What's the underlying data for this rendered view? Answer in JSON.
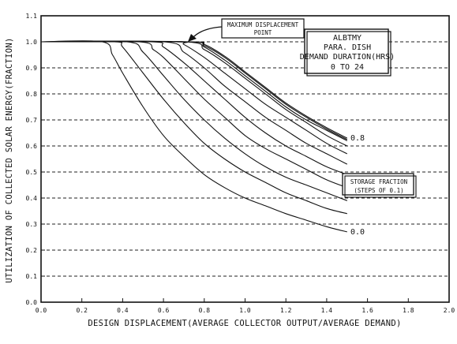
{
  "chart_data": {
    "type": "line",
    "xlabel": "DESIGN DISPLACEMENT(AVERAGE COLLECTOR OUTPUT/AVERAGE DEMAND)",
    "ylabel": "UTILIZATION OF COLLECTED SOLAR ENERGY(FRACTION)",
    "xlim": [
      0,
      2.0
    ],
    "ylim": [
      0,
      1.1
    ],
    "x_ticks": [
      "0.0",
      "0.2",
      "0.4",
      "0.6",
      "0.8",
      "1.0",
      "1.2",
      "1.4",
      "1.6",
      "1.8",
      "2.0"
    ],
    "y_ticks": [
      "0.0",
      "0.1",
      "0.2",
      "0.3",
      "0.4",
      "0.5",
      "0.6",
      "0.7",
      "0.8",
      "0.9",
      "1.0",
      "1.1"
    ],
    "grid": true,
    "info_box": [
      "ALBTMY",
      "PARA. DISH",
      "DEMAND DURATION(HRS)",
      "0 TO 24"
    ],
    "max_point_annotation": [
      "MAXIMUM DISPLACEMENT",
      "POINT"
    ],
    "storage_box": [
      "STORAGE FRACTION",
      "(STEPS OF 0.1)"
    ],
    "curve_label_top": "0.8",
    "curve_label_bottom": "0.0",
    "series": [
      {
        "x": [
          0.0,
          0.3,
          0.35,
          0.4,
          0.5,
          0.6,
          0.7,
          0.8,
          0.9,
          1.0,
          1.1,
          1.2,
          1.3,
          1.4,
          1.5
        ],
        "y": [
          1.0,
          1.0,
          0.95,
          0.88,
          0.75,
          0.64,
          0.56,
          0.49,
          0.44,
          0.4,
          0.37,
          0.34,
          0.315,
          0.29,
          0.27
        ]
      },
      {
        "x": [
          0.0,
          0.36,
          0.4,
          0.5,
          0.6,
          0.7,
          0.8,
          0.9,
          1.0,
          1.1,
          1.2,
          1.3,
          1.4,
          1.5
        ],
        "y": [
          1.0,
          1.0,
          0.98,
          0.88,
          0.78,
          0.69,
          0.61,
          0.55,
          0.5,
          0.46,
          0.42,
          0.39,
          0.36,
          0.34
        ]
      },
      {
        "x": [
          0.0,
          0.42,
          0.5,
          0.6,
          0.7,
          0.8,
          0.9,
          1.0,
          1.1,
          1.2,
          1.3,
          1.4,
          1.5
        ],
        "y": [
          1.0,
          1.0,
          0.96,
          0.87,
          0.78,
          0.7,
          0.63,
          0.57,
          0.52,
          0.48,
          0.45,
          0.42,
          0.39
        ]
      },
      {
        "x": [
          0.0,
          0.48,
          0.55,
          0.6,
          0.7,
          0.8,
          0.9,
          1.0,
          1.1,
          1.2,
          1.3,
          1.4,
          1.5
        ],
        "y": [
          1.0,
          1.0,
          0.97,
          0.94,
          0.86,
          0.78,
          0.71,
          0.64,
          0.59,
          0.55,
          0.51,
          0.47,
          0.44
        ]
      },
      {
        "x": [
          0.0,
          0.54,
          0.6,
          0.7,
          0.8,
          0.9,
          1.0,
          1.1,
          1.2,
          1.3,
          1.4,
          1.5
        ],
        "y": [
          1.0,
          1.0,
          0.98,
          0.92,
          0.85,
          0.78,
          0.71,
          0.65,
          0.6,
          0.56,
          0.52,
          0.49
        ]
      },
      {
        "x": [
          0.0,
          0.6,
          0.7,
          0.8,
          0.9,
          1.0,
          1.1,
          1.2,
          1.3,
          1.4,
          1.5
        ],
        "y": [
          1.0,
          1.0,
          0.96,
          0.9,
          0.83,
          0.77,
          0.71,
          0.66,
          0.61,
          0.57,
          0.53
        ]
      },
      {
        "x": [
          0.0,
          0.66,
          0.7,
          0.8,
          0.9,
          1.0,
          1.1,
          1.2,
          1.3,
          1.4,
          1.5
        ],
        "y": [
          1.0,
          1.0,
          0.99,
          0.94,
          0.88,
          0.82,
          0.76,
          0.71,
          0.66,
          0.61,
          0.57
        ]
      },
      {
        "x": [
          0.0,
          0.7,
          0.8,
          0.9,
          1.0,
          1.1,
          1.2,
          1.3,
          1.4,
          1.5
        ],
        "y": [
          1.0,
          1.0,
          0.97,
          0.92,
          0.86,
          0.8,
          0.74,
          0.69,
          0.64,
          0.6
        ]
      },
      {
        "x": [
          0.0,
          0.72,
          0.8,
          0.9,
          1.0,
          1.1,
          1.2,
          1.3,
          1.4,
          1.5
        ],
        "y": [
          1.0,
          1.0,
          0.98,
          0.93,
          0.87,
          0.81,
          0.75,
          0.7,
          0.66,
          0.62
        ]
      },
      {
        "x": [
          0.0,
          0.72,
          0.8,
          0.9,
          1.0,
          1.1,
          1.2,
          1.3,
          1.4,
          1.5
        ],
        "y": [
          1.0,
          1.0,
          0.985,
          0.94,
          0.88,
          0.82,
          0.76,
          0.71,
          0.665,
          0.625
        ]
      },
      {
        "x": [
          0.0,
          0.72,
          0.8,
          0.9,
          1.0,
          1.1,
          1.2,
          1.3,
          1.4,
          1.5
        ],
        "y": [
          1.0,
          1.0,
          0.99,
          0.945,
          0.885,
          0.825,
          0.765,
          0.715,
          0.67,
          0.63
        ]
      }
    ]
  }
}
